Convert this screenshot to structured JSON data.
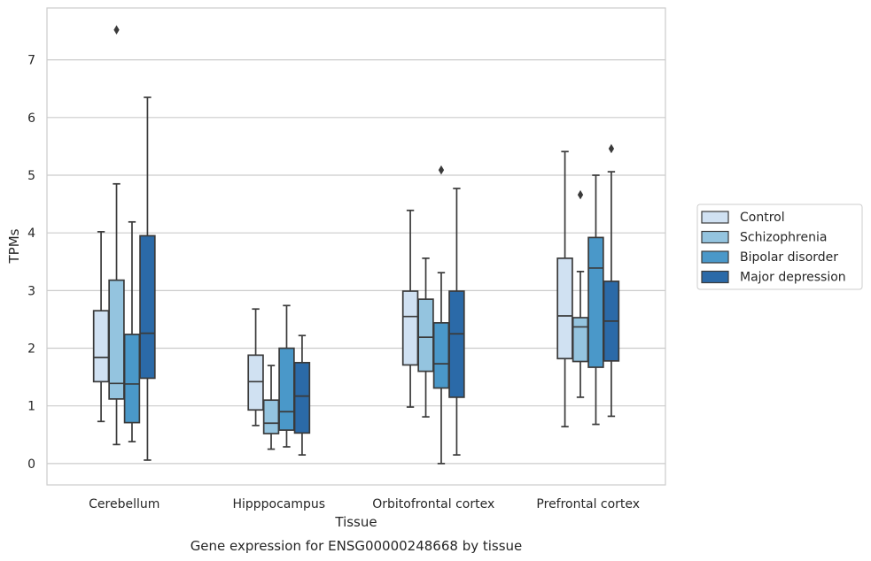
{
  "chart_data": {
    "type": "box",
    "xlabel": "Tissue",
    "ylabel": "TPMs",
    "caption": "Gene expression for ENSG00000248668 by tissue",
    "ylim": [
      -0.37,
      7.9
    ],
    "yticks": [
      0,
      1,
      2,
      3,
      4,
      5,
      6,
      7
    ],
    "grid": "horizontal",
    "legend_position": "right",
    "categories": [
      "Cerebellum",
      "Hipppocampus",
      "Orbitofrontal cortex",
      "Prefrontal cortex"
    ],
    "series": [
      {
        "name": "Control",
        "color": "#d0e1f2",
        "boxes": [
          {
            "whislo": 0.73,
            "q1": 1.42,
            "med": 1.84,
            "q3": 2.65,
            "whishi": 4.02,
            "fliers": []
          },
          {
            "whislo": 0.66,
            "q1": 0.93,
            "med": 1.42,
            "q3": 1.88,
            "whishi": 2.68,
            "fliers": []
          },
          {
            "whislo": 0.98,
            "q1": 1.71,
            "med": 2.55,
            "q3": 2.99,
            "whishi": 4.39,
            "fliers": []
          },
          {
            "whislo": 0.64,
            "q1": 1.82,
            "med": 2.56,
            "q3": 3.56,
            "whishi": 5.41,
            "fliers": []
          }
        ]
      },
      {
        "name": "Schizophrenia",
        "color": "#94c4df",
        "boxes": [
          {
            "whislo": 0.33,
            "q1": 1.12,
            "med": 1.39,
            "q3": 3.18,
            "whishi": 4.85,
            "fliers": [
              7.52
            ]
          },
          {
            "whislo": 0.25,
            "q1": 0.52,
            "med": 0.7,
            "q3": 1.1,
            "whishi": 1.7,
            "fliers": []
          },
          {
            "whislo": 0.81,
            "q1": 1.6,
            "med": 2.19,
            "q3": 2.85,
            "whishi": 3.56,
            "fliers": []
          },
          {
            "whislo": 1.15,
            "q1": 1.77,
            "med": 2.37,
            "q3": 2.53,
            "whishi": 3.33,
            "fliers": [
              4.66
            ]
          }
        ]
      },
      {
        "name": "Bipolar disorder",
        "color": "#4a98c9",
        "boxes": [
          {
            "whislo": 0.38,
            "q1": 0.71,
            "med": 1.38,
            "q3": 2.24,
            "whishi": 4.19,
            "fliers": []
          },
          {
            "whislo": 0.29,
            "q1": 0.58,
            "med": 0.9,
            "q3": 2.0,
            "whishi": 2.74,
            "fliers": []
          },
          {
            "whislo": 0.0,
            "q1": 1.31,
            "med": 1.73,
            "q3": 2.44,
            "whishi": 3.31,
            "fliers": [
              5.09
            ]
          },
          {
            "whislo": 0.68,
            "q1": 1.67,
            "med": 3.39,
            "q3": 3.92,
            "whishi": 5.0,
            "fliers": []
          }
        ]
      },
      {
        "name": "Major depression",
        "color": "#2b6aa8",
        "boxes": [
          {
            "whislo": 0.06,
            "q1": 1.48,
            "med": 2.26,
            "q3": 3.95,
            "whishi": 6.35,
            "fliers": []
          },
          {
            "whislo": 0.15,
            "q1": 0.53,
            "med": 1.17,
            "q3": 1.75,
            "whishi": 2.22,
            "fliers": []
          },
          {
            "whislo": 0.15,
            "q1": 1.15,
            "med": 2.25,
            "q3": 2.99,
            "whishi": 4.77,
            "fliers": []
          },
          {
            "whislo": 0.82,
            "q1": 1.78,
            "med": 2.47,
            "q3": 3.16,
            "whishi": 5.06,
            "fliers": [
              5.46
            ]
          }
        ]
      }
    ]
  }
}
